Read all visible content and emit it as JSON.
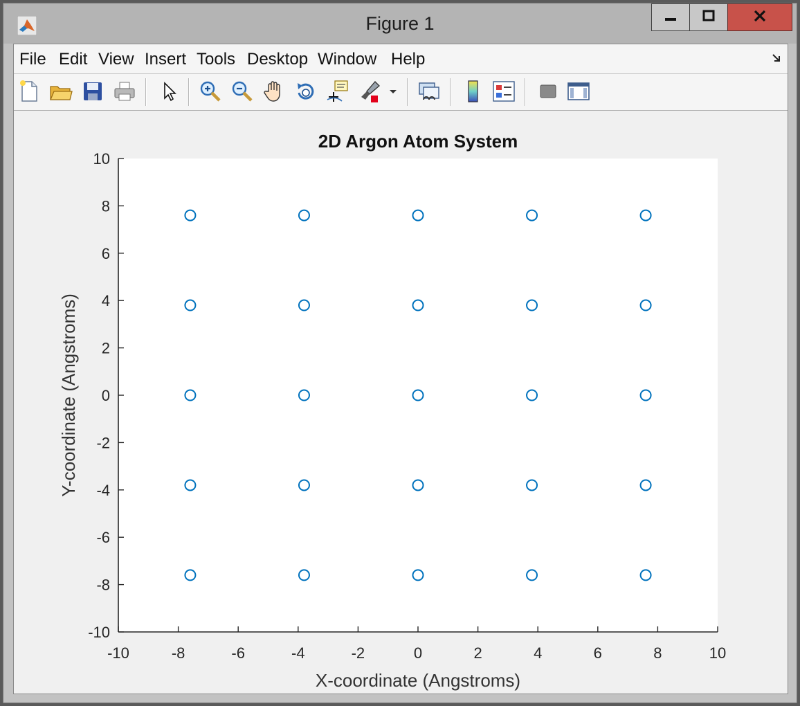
{
  "window": {
    "title": "Figure 1",
    "controls": {
      "minimize_icon": "minimize-icon",
      "maximize_icon": "maximize-icon",
      "close_icon": "close-icon"
    }
  },
  "menu": {
    "items": [
      "File",
      "Edit",
      "View",
      "Insert",
      "Tools",
      "Desktop",
      "Window",
      "Help"
    ]
  },
  "toolbar": {
    "items": [
      {
        "name": "new-figure",
        "icon": "new-file-icon"
      },
      {
        "name": "open-file",
        "icon": "folder-icon"
      },
      {
        "name": "save-figure",
        "icon": "save-icon"
      },
      {
        "name": "print-figure",
        "icon": "printer-icon"
      },
      {
        "name": "edit-plot",
        "icon": "pointer-icon"
      },
      {
        "name": "zoom-in",
        "icon": "zoom-in-icon"
      },
      {
        "name": "zoom-out",
        "icon": "zoom-out-icon"
      },
      {
        "name": "pan",
        "icon": "hand-icon"
      },
      {
        "name": "rotate-3d",
        "icon": "rotate-icon"
      },
      {
        "name": "data-cursor",
        "icon": "data-cursor-icon"
      },
      {
        "name": "brush",
        "icon": "brush-icon"
      },
      {
        "name": "link-plot",
        "icon": "link-plot-icon"
      },
      {
        "name": "insert-colorbar",
        "icon": "colorbar-icon"
      },
      {
        "name": "insert-legend",
        "icon": "legend-icon"
      },
      {
        "name": "hide-plot-tools",
        "icon": "hide-tools-icon"
      },
      {
        "name": "show-plot-tools",
        "icon": "show-tools-icon"
      }
    ]
  },
  "colors": {
    "marker": "#0072bd",
    "axes_bg": "#ffffff",
    "figure_bg": "#f0f0f0",
    "close_button": "#c8524a"
  },
  "chart_data": {
    "type": "scatter",
    "title": "2D Argon Atom System",
    "xlabel": "X-coordinate (Angstroms)",
    "ylabel": "Y-coordinate (Angstroms)",
    "xlim": [
      -10,
      10
    ],
    "ylim": [
      -10,
      10
    ],
    "xticks": [
      -10,
      -8,
      -6,
      -4,
      -2,
      0,
      2,
      4,
      6,
      8,
      10
    ],
    "yticks": [
      -10,
      -8,
      -6,
      -4,
      -2,
      0,
      2,
      4,
      6,
      8,
      10
    ],
    "grid": false,
    "marker": "open-circle",
    "series": [
      {
        "x": [
          -7.6,
          -3.8,
          0,
          3.8,
          7.6,
          -7.6,
          -3.8,
          0,
          3.8,
          7.6,
          -7.6,
          -3.8,
          0,
          3.8,
          7.6,
          -7.6,
          -3.8,
          0,
          3.8,
          7.6,
          -7.6,
          -3.8,
          0,
          3.8,
          7.6
        ],
        "y": [
          7.6,
          7.6,
          7.6,
          7.6,
          7.6,
          3.8,
          3.8,
          3.8,
          3.8,
          3.8,
          0,
          0,
          0,
          0,
          0,
          -3.8,
          -3.8,
          -3.8,
          -3.8,
          -3.8,
          -7.6,
          -7.6,
          -7.6,
          -7.6,
          -7.6
        ]
      }
    ]
  }
}
